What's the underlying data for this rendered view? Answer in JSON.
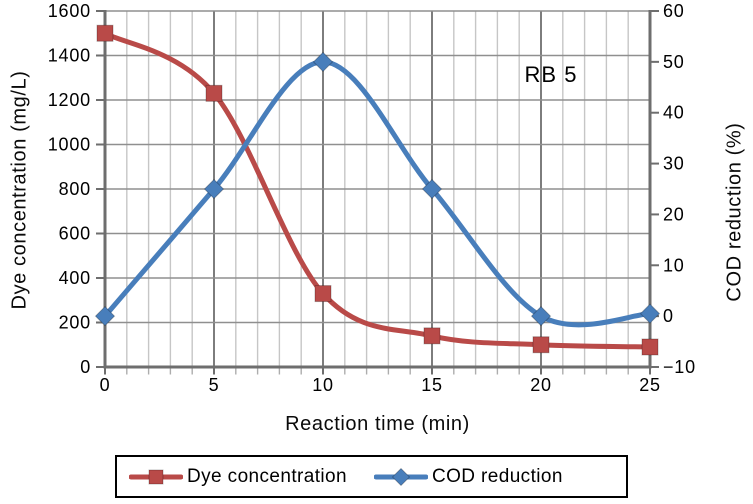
{
  "chart_data": {
    "type": "line",
    "annotation": "RB 5",
    "x": [
      0,
      5,
      10,
      15,
      20,
      25
    ],
    "xlabel": "Reaction time (min)",
    "xlim": [
      0,
      25
    ],
    "x_major_ticks": [
      0,
      5,
      10,
      15,
      20,
      25
    ],
    "x_minor_tick_step": 1,
    "grid": "horizontal major every 200 (left axis); vertical minor every 1 min, major every 5 min",
    "smooth_lines": true,
    "legend_position": "bottom-center boxed",
    "y_left": {
      "label": "Dye concentration (mg/L)",
      "lim": [
        0,
        1600
      ],
      "ticks": [
        0,
        200,
        400,
        600,
        800,
        1000,
        1200,
        1400,
        1600
      ]
    },
    "y_right": {
      "label": "COD reduction (%)",
      "lim": [
        -10,
        60
      ],
      "ticks": [
        -10,
        0,
        10,
        20,
        30,
        40,
        50,
        60
      ]
    },
    "series": [
      {
        "name": "Dye concentration",
        "axis": "left",
        "marker": "square",
        "color": "#b94a48",
        "values": [
          1500,
          1230,
          330,
          140,
          100,
          90
        ]
      },
      {
        "name": "COD reduction",
        "axis": "right",
        "marker": "diamond",
        "color": "#487ebb",
        "values": [
          0,
          25,
          50,
          25,
          0,
          0.5
        ]
      }
    ],
    "colors": {
      "grid_major": "#8f8f8f",
      "grid_minor": "#c6c6c6",
      "axis": "#6e6e6e",
      "minor_tick": "#adadad",
      "text": "#000000"
    }
  }
}
